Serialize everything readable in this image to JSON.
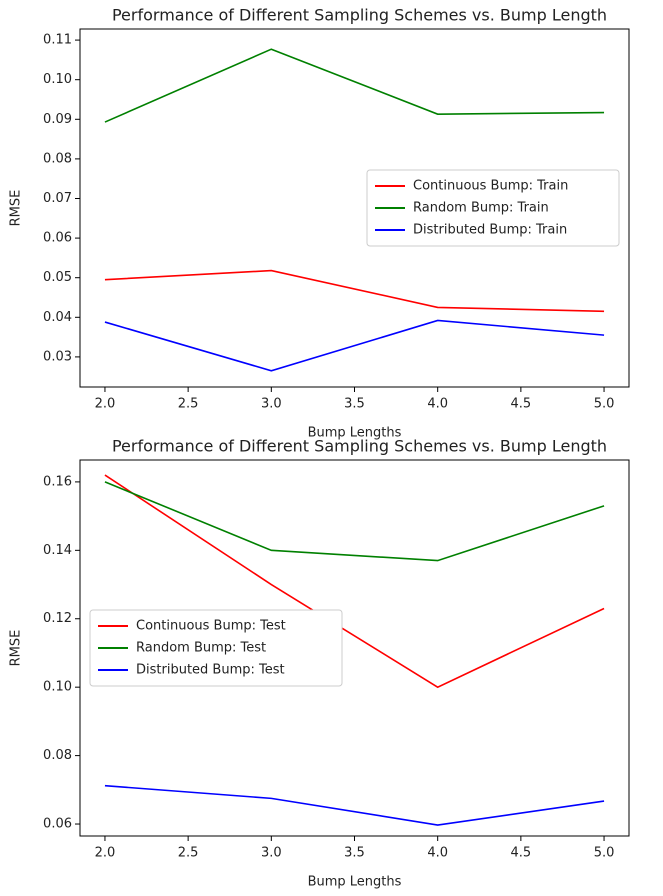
{
  "chart_data": [
    {
      "type": "line",
      "title": "Performance of Different Sampling Schemes vs. Bump Length",
      "x_label": "Bump Lengths",
      "y_label": "RMSE",
      "x": [
        2,
        3,
        4,
        5
      ],
      "series": [
        {
          "name": "Continuous Bump: Train",
          "color": "#ff0000",
          "values": [
            0.0495,
            0.0518,
            0.0425,
            0.0415
          ]
        },
        {
          "name": "Random Bump: Train",
          "color": "#008000",
          "values": [
            0.0893,
            0.1077,
            0.0913,
            0.0917
          ]
        },
        {
          "name": "Distributed Bump: Train",
          "color": "#0000ff",
          "values": [
            0.0388,
            0.0265,
            0.0392,
            0.0355
          ]
        }
      ],
      "xlim": [
        1.85,
        5.15
      ],
      "xticks": [
        {
          "value": 2,
          "label": "2.0"
        },
        {
          "value": 2.5,
          "label": "2.5"
        },
        {
          "value": 3,
          "label": "3.0"
        },
        {
          "value": 3.5,
          "label": "3.5"
        },
        {
          "value": 4,
          "label": "4.0"
        },
        {
          "value": 4.5,
          "label": "4.5"
        },
        {
          "value": 5,
          "label": "5.0"
        }
      ],
      "ylim": [
        0.0224,
        0.1128
      ],
      "yticks": [
        0.03,
        0.04,
        0.05,
        0.06,
        0.07,
        0.08,
        0.09,
        {
          "value": 0.1,
          "label": "0.10"
        },
        0.11
      ],
      "legend": "center right"
    },
    {
      "type": "line",
      "title": "Performance of Different Sampling Schemes vs. Bump Length",
      "x_label": "Bump Lengths",
      "y_label": "RMSE",
      "x": [
        2,
        3,
        4,
        5
      ],
      "series": [
        {
          "name": "Continuous Bump: Test",
          "color": "#ff0000",
          "values": [
            0.162,
            0.13,
            0.1,
            0.123
          ]
        },
        {
          "name": "Random Bump: Test",
          "color": "#008000",
          "values": [
            0.16,
            0.14,
            0.137,
            0.153
          ]
        },
        {
          "name": "Distributed Bump: Test",
          "color": "#0000ff",
          "values": [
            0.0712,
            0.0675,
            0.0597,
            0.0667
          ]
        }
      ],
      "xlim": [
        1.85,
        5.15
      ],
      "xticks": [
        {
          "value": 2,
          "label": "2.0"
        },
        {
          "value": 2.5,
          "label": "2.5"
        },
        {
          "value": 3,
          "label": "3.0"
        },
        {
          "value": 3.5,
          "label": "3.5"
        },
        {
          "value": 4,
          "label": "4.0"
        },
        {
          "value": 4.5,
          "label": "4.5"
        },
        {
          "value": 5,
          "label": "5.0"
        }
      ],
      "ylim": [
        0.0565,
        0.1664
      ],
      "yticks": [
        0.06,
        0.08,
        {
          "value": 0.1,
          "label": "0.10"
        },
        0.12,
        0.14,
        0.16
      ],
      "legend": "center left"
    }
  ]
}
